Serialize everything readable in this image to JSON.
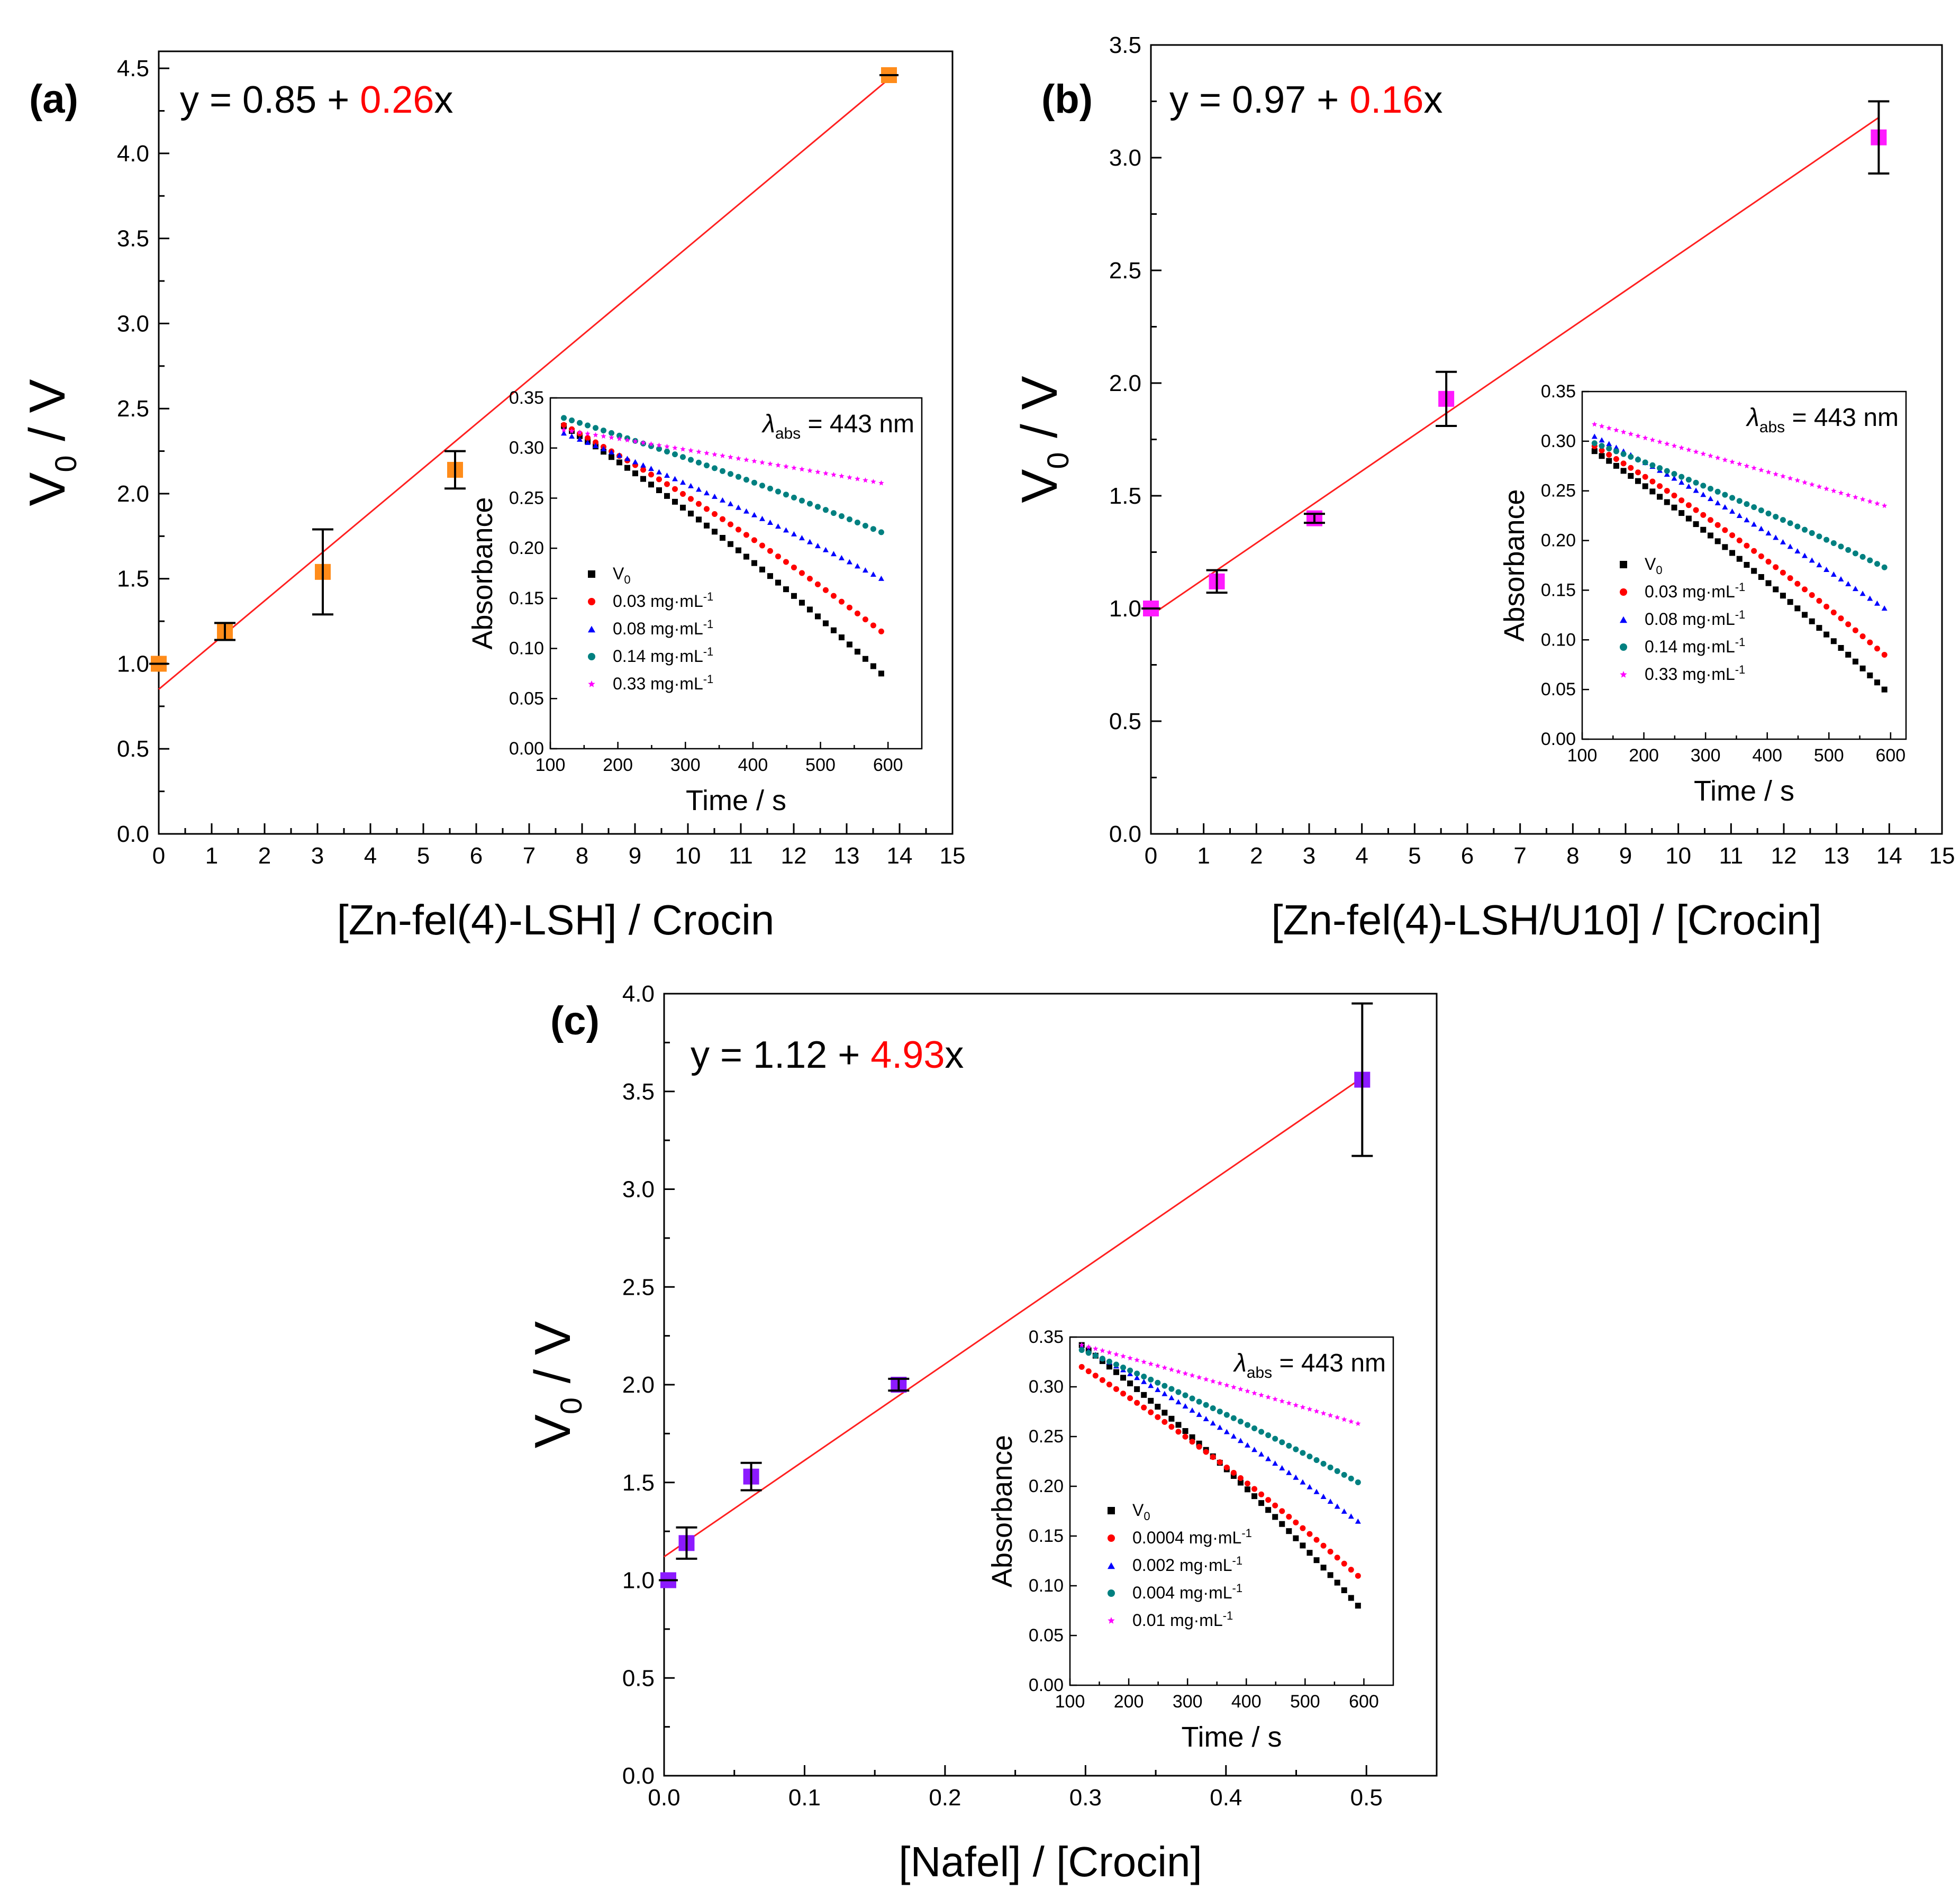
{
  "colors": {
    "fit_line": "#ff2020",
    "slope_text": "#ff0000",
    "marker_a": "#ff8c1a",
    "marker_b": "#ff1aff",
    "marker_c": "#8c1aff",
    "series_V0": "#000000",
    "series_s1": "#ff0000",
    "series_s2": "#0000ff",
    "series_s3": "#008080",
    "series_s4": "#ff00ff"
  },
  "chart_data": [
    {
      "panel_label": "(a)",
      "type": "scatter",
      "equation": {
        "prefix": "y = 0.85 + ",
        "slope": "0.26",
        "suffix": "x"
      },
      "fit": {
        "intercept": 0.85,
        "slope": 0.26
      },
      "xlabel": "[Zn-fel(4)-LSH] / Crocin",
      "ylabel_main": "V",
      "ylabel_sub": "0",
      "ylabel_tail": " / V",
      "xlim": [
        0,
        15
      ],
      "ylim": [
        0,
        4.6
      ],
      "xticks": [
        0,
        1,
        2,
        3,
        4,
        5,
        6,
        7,
        8,
        9,
        10,
        11,
        12,
        13,
        14,
        15
      ],
      "xtick_labels": [
        "0",
        "1",
        "2",
        "3",
        "4",
        "5",
        "6",
        "7",
        "8",
        "9",
        "10",
        "11",
        "12",
        "13",
        "14",
        "15"
      ],
      "yticks": [
        0,
        0.5,
        1,
        1.5,
        2,
        2.5,
        3,
        3.5,
        4,
        4.5
      ],
      "ytick_labels": [
        "0.0",
        "0.5",
        "1.0",
        "1.5",
        "2.0",
        "2.5",
        "3.0",
        "3.5",
        "4.0",
        "4.5"
      ],
      "points": [
        {
          "x": 0,
          "y": 1.0,
          "err": 0
        },
        {
          "x": 1.25,
          "y": 1.19,
          "err": 0.05
        },
        {
          "x": 3.1,
          "y": 1.54,
          "err": 0.25
        },
        {
          "x": 5.6,
          "y": 2.14,
          "err": 0.11
        },
        {
          "x": 13.8,
          "y": 4.46,
          "err": 0
        }
      ],
      "fit_x_range": [
        0,
        13.9
      ],
      "inset": {
        "annotation_main": "λ",
        "annotation_sub": "abs",
        "annotation_tail": " = 443 nm",
        "xlabel": "Time / s",
        "ylabel": "Absorbance",
        "xlim": [
          100,
          650
        ],
        "ylim": [
          0,
          0.35
        ],
        "xticks": [
          100,
          200,
          300,
          400,
          500,
          600
        ],
        "xtick_labels": [
          "100",
          "200",
          "300",
          "400",
          "500",
          "600"
        ],
        "yticks": [
          0,
          0.05,
          0.1,
          0.15,
          0.2,
          0.25,
          0.3,
          0.35
        ],
        "ytick_labels": [
          "0.00",
          "0.05",
          "0.10",
          "0.15",
          "0.20",
          "0.25",
          "0.30",
          "0.35"
        ],
        "series": [
          {
            "name": "V",
            "sub": "0",
            "suffix": "",
            "y_start": 0.322,
            "y_end": 0.075,
            "curve": 0.55,
            "marker": "square",
            "color_key": "series_V0"
          },
          {
            "name": "0.03 mg·mL",
            "sub": "",
            "suffix": "-1",
            "y_start": 0.323,
            "y_end": 0.117,
            "curve": 0.5,
            "marker": "circle",
            "color_key": "series_s1"
          },
          {
            "name": "0.08 mg·mL",
            "sub": "",
            "suffix": "-1",
            "y_start": 0.315,
            "y_end": 0.17,
            "curve": 0.45,
            "marker": "triangle",
            "color_key": "series_s2"
          },
          {
            "name": "0.14 mg·mL",
            "sub": "",
            "suffix": "-1",
            "y_start": 0.33,
            "y_end": 0.216,
            "curve": 0.4,
            "marker": "circle",
            "color_key": "series_s3"
          },
          {
            "name": "0.33 mg·mL",
            "sub": "",
            "suffix": "-1",
            "y_start": 0.318,
            "y_end": 0.265,
            "curve": 0.15,
            "marker": "star",
            "color_key": "series_s4"
          }
        ]
      }
    },
    {
      "panel_label": "(b)",
      "type": "scatter",
      "equation": {
        "prefix": "y = 0.97 + ",
        "slope": "0.16",
        "suffix": "x"
      },
      "fit": {
        "intercept": 0.97,
        "slope": 0.16
      },
      "xlabel": "[Zn-fel(4)-LSH/U10] / [Crocin]",
      "ylabel_main": "V",
      "ylabel_sub": "0",
      "ylabel_tail": " / V",
      "xlim": [
        0,
        15
      ],
      "ylim": [
        0,
        3.5
      ],
      "xticks": [
        0,
        1,
        2,
        3,
        4,
        5,
        6,
        7,
        8,
        9,
        10,
        11,
        12,
        13,
        14,
        15
      ],
      "xtick_labels": [
        "0",
        "1",
        "2",
        "3",
        "4",
        "5",
        "6",
        "7",
        "8",
        "9",
        "10",
        "11",
        "12",
        "13",
        "14",
        "15"
      ],
      "yticks": [
        0,
        0.5,
        1,
        1.5,
        2,
        2.5,
        3,
        3.5
      ],
      "ytick_labels": [
        "0.0",
        "0.5",
        "1.0",
        "1.5",
        "2.0",
        "2.5",
        "3.0",
        "3.5"
      ],
      "points": [
        {
          "x": 0,
          "y": 1.0,
          "err": 0
        },
        {
          "x": 1.25,
          "y": 1.12,
          "err": 0.05
        },
        {
          "x": 3.1,
          "y": 1.4,
          "err": 0.02
        },
        {
          "x": 5.6,
          "y": 1.93,
          "err": 0.12
        },
        {
          "x": 13.8,
          "y": 3.09,
          "err": 0.16
        }
      ],
      "fit_x_range": [
        0,
        13.8
      ],
      "inset": {
        "annotation_main": "λ",
        "annotation_sub": "abs",
        "annotation_tail": " = 443 nm",
        "xlabel": "Time / s",
        "ylabel": "Absorbance",
        "xlim": [
          100,
          625
        ],
        "ylim": [
          0,
          0.35
        ],
        "xticks": [
          100,
          200,
          300,
          400,
          500,
          600
        ],
        "xtick_labels": [
          "100",
          "200",
          "300",
          "400",
          "500",
          "600"
        ],
        "yticks": [
          0,
          0.05,
          0.1,
          0.15,
          0.2,
          0.25,
          0.3,
          0.35
        ],
        "ytick_labels": [
          "0.00",
          "0.05",
          "0.10",
          "0.15",
          "0.20",
          "0.25",
          "0.30",
          "0.35"
        ],
        "series": [
          {
            "name": "V",
            "sub": "0",
            "suffix": "",
            "y_start": 0.29,
            "y_end": 0.05,
            "curve": 0.55,
            "marker": "square",
            "color_key": "series_V0"
          },
          {
            "name": "0.03 mg·mL",
            "sub": "",
            "suffix": "-1",
            "y_start": 0.295,
            "y_end": 0.085,
            "curve": 0.55,
            "marker": "circle",
            "color_key": "series_s1"
          },
          {
            "name": "0.08 mg·mL",
            "sub": "",
            "suffix": "-1",
            "y_start": 0.305,
            "y_end": 0.132,
            "curve": 0.45,
            "marker": "triangle",
            "color_key": "series_s2"
          },
          {
            "name": "0.14 mg·mL",
            "sub": "",
            "suffix": "-1",
            "y_start": 0.298,
            "y_end": 0.173,
            "curve": 0.4,
            "marker": "circle",
            "color_key": "series_s3"
          },
          {
            "name": "0.33 mg·mL",
            "sub": "",
            "suffix": "-1",
            "y_start": 0.317,
            "y_end": 0.235,
            "curve": 0.15,
            "marker": "star",
            "color_key": "series_s4"
          }
        ]
      }
    },
    {
      "panel_label": "(c)",
      "type": "scatter",
      "equation": {
        "prefix": "y = 1.12 + ",
        "slope": "4.93",
        "suffix": "x"
      },
      "fit": {
        "intercept": 1.12,
        "slope": 4.93
      },
      "xlabel": "[Nafel] / [Crocin]",
      "ylabel_main": "V",
      "ylabel_sub": "0",
      "ylabel_tail": " / V",
      "xlim": [
        0,
        0.55
      ],
      "ylim": [
        0,
        4.0
      ],
      "xticks": [
        0,
        0.1,
        0.2,
        0.3,
        0.4,
        0.5
      ],
      "xtick_labels": [
        "0.0",
        "0.1",
        "0.2",
        "0.3",
        "0.4",
        "0.5"
      ],
      "yticks": [
        0,
        0.5,
        1,
        1.5,
        2,
        2.5,
        3,
        3.5,
        4
      ],
      "ytick_labels": [
        "0.0",
        "0.5",
        "1.0",
        "1.5",
        "2.0",
        "2.5",
        "3.0",
        "3.5",
        "4.0"
      ],
      "points": [
        {
          "x": 0.003,
          "y": 1.0,
          "err": 0
        },
        {
          "x": 0.016,
          "y": 1.19,
          "err": 0.08
        },
        {
          "x": 0.062,
          "y": 1.53,
          "err": 0.07
        },
        {
          "x": 0.167,
          "y": 2.0,
          "err": 0.03
        },
        {
          "x": 0.497,
          "y": 3.56,
          "err": 0.39
        }
      ],
      "fit_x_range": [
        0,
        0.497
      ],
      "inset": {
        "annotation_main": "λ",
        "annotation_sub": "abs",
        "annotation_tail": " = 443 nm",
        "xlabel": "Time / s",
        "ylabel": "Absorbance",
        "xlim": [
          100,
          650
        ],
        "ylim": [
          0,
          0.35
        ],
        "xticks": [
          100,
          200,
          300,
          400,
          500,
          600
        ],
        "xtick_labels": [
          "100",
          "200",
          "300",
          "400",
          "500",
          "600"
        ],
        "yticks": [
          0,
          0.05,
          0.1,
          0.15,
          0.2,
          0.25,
          0.3,
          0.35
        ],
        "ytick_labels": [
          "0.00",
          "0.05",
          "0.10",
          "0.15",
          "0.20",
          "0.25",
          "0.30",
          "0.35"
        ],
        "series": [
          {
            "name": "V",
            "sub": "0",
            "suffix": "",
            "y_start": 0.342,
            "y_end": 0.08,
            "curve": 0.55,
            "marker": "square",
            "color_key": "series_V0"
          },
          {
            "name": "0.0004 mg·mL",
            "sub": "",
            "suffix": "-1",
            "y_start": 0.32,
            "y_end": 0.11,
            "curve": 0.5,
            "marker": "circle",
            "color_key": "series_s1"
          },
          {
            "name": "0.002 mg·mL",
            "sub": "",
            "suffix": "-1",
            "y_start": 0.34,
            "y_end": 0.165,
            "curve": 0.45,
            "marker": "triangle",
            "color_key": "series_s2"
          },
          {
            "name": "0.004 mg·mL",
            "sub": "",
            "suffix": "-1",
            "y_start": 0.337,
            "y_end": 0.204,
            "curve": 0.4,
            "marker": "circle",
            "color_key": "series_s3"
          },
          {
            "name": "0.01 mg·mL",
            "sub": "",
            "suffix": "-1",
            "y_start": 0.342,
            "y_end": 0.263,
            "curve": 0.15,
            "marker": "star",
            "color_key": "series_s4"
          }
        ]
      }
    }
  ]
}
